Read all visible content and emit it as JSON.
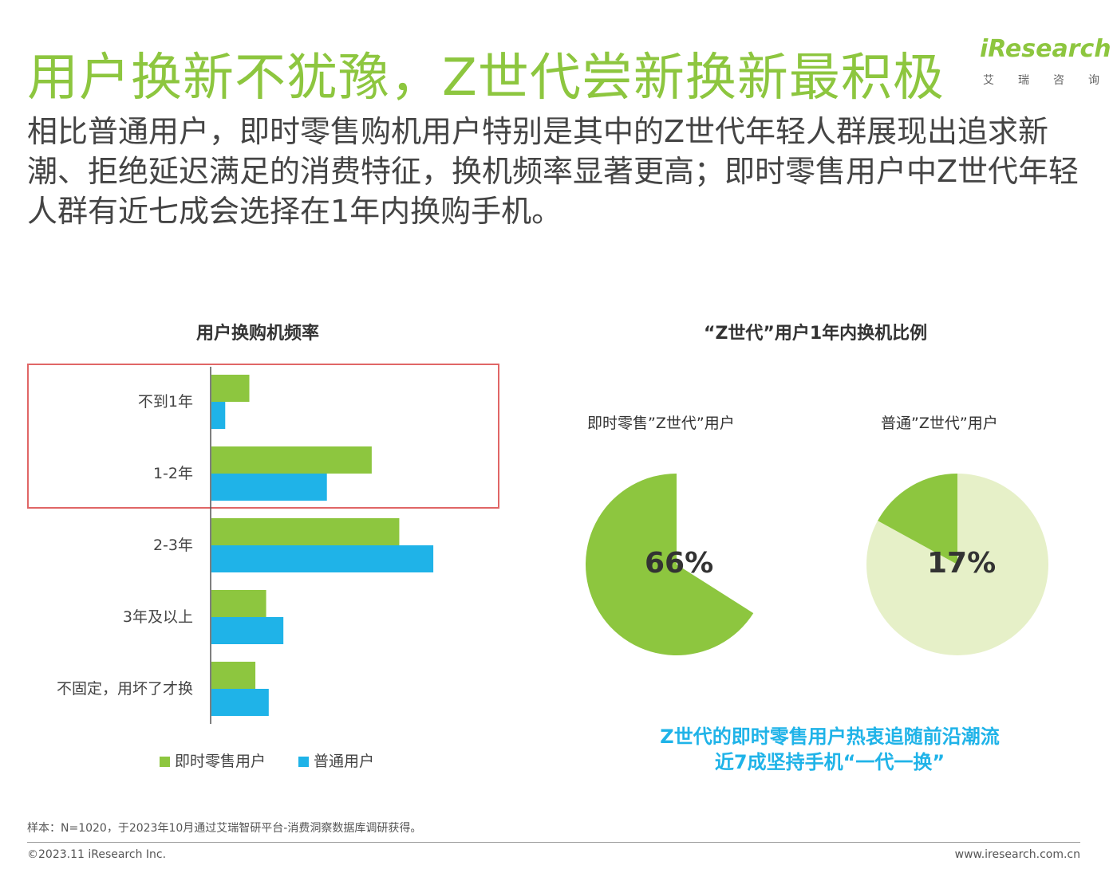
{
  "header": {
    "title": "用户换新不犹豫，Z世代尝新换新最积极",
    "logo_text": "iResearch",
    "logo_sub": "艾瑞咨询",
    "subtitle": "相比普通用户，即时零售购机用户特别是其中的Z世代年轻人群展现出追求新潮、拒绝延迟满足的消费特征，换机频率显著更高；即时零售用户中Z世代年轻人群有近七成会选择在1年内换购手机。"
  },
  "colors": {
    "green": "#8dc63f",
    "blue": "#1fb3e8",
    "light_green": "#e6f0c8",
    "title_green": "#8dc63f"
  },
  "chart_data": [
    {
      "type": "bar",
      "orientation": "horizontal",
      "title": "用户换购机频率",
      "categories": [
        "不到1年",
        "1-2年",
        "2-3年",
        "3年及以上",
        "不固定，用坏了才换"
      ],
      "series": [
        {
          "name": "即时零售用户",
          "values": [
            8.8,
            37.2,
            43.6,
            12.7,
            10.2
          ]
        },
        {
          "name": "普通用户",
          "values": [
            3.2,
            26.8,
            51.5,
            16.7,
            13.3
          ]
        }
      ],
      "xlim": [
        0,
        60
      ],
      "grid": false,
      "legend": "bottom",
      "highlighted_categories": [
        "不到1年",
        "1-2年"
      ]
    },
    {
      "type": "pie",
      "title": "“Z世代”用户1年内换机比例",
      "pies": [
        {
          "label": "即时零售”Z世代”用户",
          "value": 66,
          "display": "66%"
        },
        {
          "label": "普通”Z世代”用户",
          "value": 17,
          "display": "17%"
        }
      ]
    }
  ],
  "callout": {
    "line1": "Z世代的即时零售用户热衷追随前沿潮流",
    "line2": "近7成坚持手机“一代一换”"
  },
  "footer": {
    "footnote": "样本：N=1020，于2023年10月通过艾瑞智研平台-消费洞察数据库调研获得。",
    "copyright": "©2023.11 iResearch Inc.",
    "site": "www.iresearch.com.cn"
  }
}
